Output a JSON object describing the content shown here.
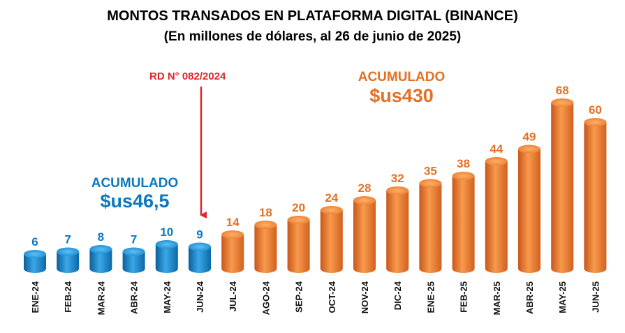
{
  "title": "MONTOS TRANSADOS EN PLATAFORMA DIGITAL (BINANCE)",
  "subtitle": "(En millones de dólares, al 26 de junio de 2025)",
  "annotations": {
    "rd_label": "RD N° 082/2024",
    "accumulated_before_label": "ACUMULADO",
    "accumulated_before_value": "$us46,5",
    "accumulated_after_label": "ACUMULADO",
    "accumulated_after_value": "$us430"
  },
  "colors": {
    "blue": "#0a78c0",
    "orange": "#e27126",
    "red": "#e0242a"
  },
  "chart_data": {
    "type": "bar",
    "categories": [
      "ENE-24",
      "FEB-24",
      "MAR-24",
      "ABR-24",
      "MAY-24",
      "JUN-24",
      "JUL-24",
      "AGO-24",
      "SEP-24",
      "OCT-24",
      "NOV-24",
      "DIC-24",
      "ENE-25",
      "FEB-25",
      "MAR-25",
      "ABR-25",
      "MAY-25",
      "JUN-25"
    ],
    "values": [
      6,
      7,
      8,
      7,
      10,
      9,
      14,
      18,
      20,
      24,
      28,
      32,
      35,
      38,
      44,
      49,
      68,
      60
    ],
    "bar_colors": [
      "blue",
      "blue",
      "blue",
      "blue",
      "blue",
      "blue",
      "orange",
      "orange",
      "orange",
      "orange",
      "orange",
      "orange",
      "orange",
      "orange",
      "orange",
      "orange",
      "orange",
      "orange"
    ],
    "xlabel": "",
    "ylabel": "",
    "grid": false,
    "legend": "none"
  }
}
